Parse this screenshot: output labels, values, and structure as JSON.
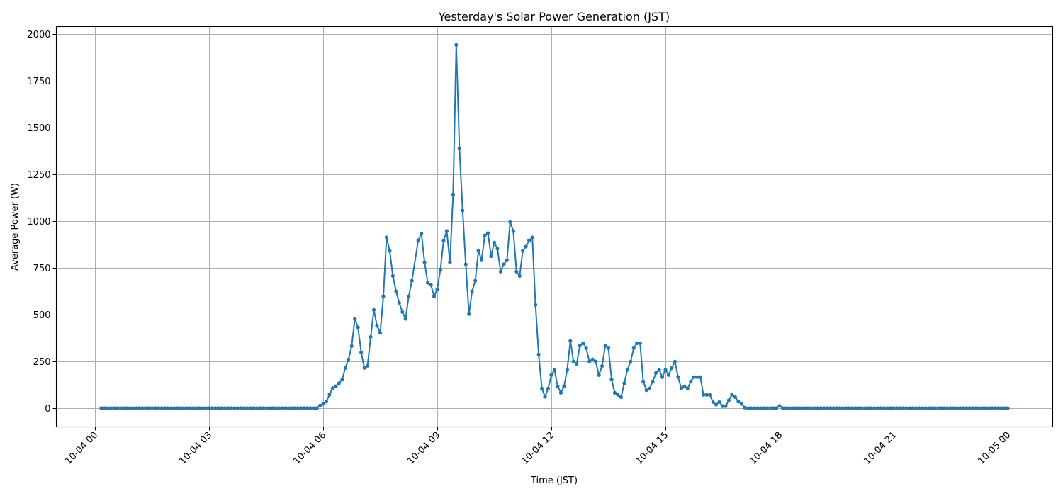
{
  "chart_data": {
    "type": "line",
    "title": "Yesterday's Solar Power Generation (JST)",
    "xlabel": "Time (JST)",
    "ylabel": "Average Power (W)",
    "x_unit": "minutes since 10-04 00:00",
    "xlim_minutes": [
      -35,
      1500
    ],
    "ylim": [
      -100,
      2050
    ],
    "grid": true,
    "legend": "none",
    "marker": "circle",
    "color": "#1f77b4",
    "x_ticks": [
      {
        "minutes": 0,
        "label": "10-04 00"
      },
      {
        "minutes": 180,
        "label": "10-04 03"
      },
      {
        "minutes": 360,
        "label": "10-04 06"
      },
      {
        "minutes": 540,
        "label": "10-04 09"
      },
      {
        "minutes": 720,
        "label": "10-04 12"
      },
      {
        "minutes": 900,
        "label": "10-04 15"
      },
      {
        "minutes": 1080,
        "label": "10-04 18"
      },
      {
        "minutes": 1260,
        "label": "10-04 21"
      },
      {
        "minutes": 1440,
        "label": "10-05 00"
      }
    ],
    "y_ticks": [
      0,
      250,
      500,
      750,
      1000,
      1250,
      1500,
      1750,
      2000
    ],
    "series": [
      {
        "name": "Average Power (W)",
        "interval_minutes": 5,
        "zero_runs": [
          [
            10,
            350
          ],
          [
            1030,
            1075
          ],
          [
            1085,
            1440
          ]
        ],
        "points": [
          [
            355,
            14
          ],
          [
            360,
            23
          ],
          [
            365,
            35
          ],
          [
            370,
            72
          ],
          [
            375,
            107
          ],
          [
            380,
            117
          ],
          [
            385,
            133
          ],
          [
            390,
            153
          ],
          [
            395,
            215
          ],
          [
            400,
            260
          ],
          [
            405,
            332
          ],
          [
            410,
            477
          ],
          [
            415,
            432
          ],
          [
            420,
            298
          ],
          [
            425,
            215
          ],
          [
            430,
            226
          ],
          [
            435,
            381
          ],
          [
            440,
            525
          ],
          [
            445,
            440
          ],
          [
            450,
            403
          ],
          [
            455,
            597
          ],
          [
            460,
            913
          ],
          [
            465,
            841
          ],
          [
            470,
            707
          ],
          [
            475,
            625
          ],
          [
            480,
            563
          ],
          [
            485,
            514
          ],
          [
            490,
            477
          ],
          [
            495,
            597
          ],
          [
            500,
            681
          ],
          [
            510,
            897
          ],
          [
            515,
            934
          ],
          [
            520,
            780
          ],
          [
            525,
            670
          ],
          [
            530,
            659
          ],
          [
            535,
            597
          ],
          [
            540,
            635
          ],
          [
            545,
            741
          ],
          [
            550,
            896
          ],
          [
            555,
            947
          ],
          [
            560,
            780
          ],
          [
            565,
            1140
          ],
          [
            570,
            1942
          ],
          [
            575,
            1389
          ],
          [
            580,
            1057
          ],
          [
            585,
            769
          ],
          [
            590,
            503
          ],
          [
            595,
            625
          ],
          [
            600,
            681
          ],
          [
            605,
            842
          ],
          [
            610,
            791
          ],
          [
            615,
            924
          ],
          [
            620,
            936
          ],
          [
            625,
            813
          ],
          [
            630,
            885
          ],
          [
            635,
            852
          ],
          [
            640,
            730
          ],
          [
            645,
            769
          ],
          [
            650,
            791
          ],
          [
            655,
            995
          ],
          [
            660,
            947
          ],
          [
            665,
            730
          ],
          [
            670,
            707
          ],
          [
            675,
            842
          ],
          [
            680,
            864
          ],
          [
            685,
            897
          ],
          [
            690,
            913
          ],
          [
            695,
            552
          ],
          [
            700,
            287
          ],
          [
            705,
            105
          ],
          [
            710,
            61
          ],
          [
            715,
            105
          ],
          [
            720,
            177
          ],
          [
            725,
            205
          ],
          [
            730,
            116
          ],
          [
            735,
            82
          ],
          [
            740,
            116
          ],
          [
            745,
            205
          ],
          [
            750,
            359
          ],
          [
            755,
            249
          ],
          [
            760,
            237
          ],
          [
            765,
            333
          ],
          [
            770,
            347
          ],
          [
            775,
            321
          ],
          [
            780,
            249
          ],
          [
            785,
            261
          ],
          [
            790,
            249
          ],
          [
            795,
            177
          ],
          [
            800,
            225
          ],
          [
            805,
            333
          ],
          [
            810,
            321
          ],
          [
            815,
            154
          ],
          [
            820,
            82
          ],
          [
            825,
            71
          ],
          [
            830,
            59
          ],
          [
            835,
            133
          ],
          [
            840,
            205
          ],
          [
            845,
            249
          ],
          [
            850,
            321
          ],
          [
            855,
            347
          ],
          [
            860,
            347
          ],
          [
            865,
            143
          ],
          [
            870,
            96
          ],
          [
            875,
            105
          ],
          [
            880,
            143
          ],
          [
            885,
            188
          ],
          [
            890,
            205
          ],
          [
            895,
            166
          ],
          [
            900,
            205
          ],
          [
            905,
            177
          ],
          [
            910,
            215
          ],
          [
            915,
            249
          ],
          [
            920,
            166
          ],
          [
            925,
            105
          ],
          [
            930,
            116
          ],
          [
            935,
            105
          ],
          [
            940,
            143
          ],
          [
            945,
            166
          ],
          [
            950,
            166
          ],
          [
            955,
            166
          ],
          [
            960,
            71
          ],
          [
            965,
            71
          ],
          [
            970,
            71
          ],
          [
            975,
            33
          ],
          [
            980,
            19
          ],
          [
            985,
            33
          ],
          [
            990,
            11
          ],
          [
            995,
            11
          ],
          [
            1000,
            42
          ],
          [
            1005,
            72
          ],
          [
            1010,
            59
          ],
          [
            1015,
            35
          ],
          [
            1020,
            23
          ],
          [
            1025,
            3
          ],
          [
            1080,
            12
          ]
        ]
      }
    ]
  }
}
